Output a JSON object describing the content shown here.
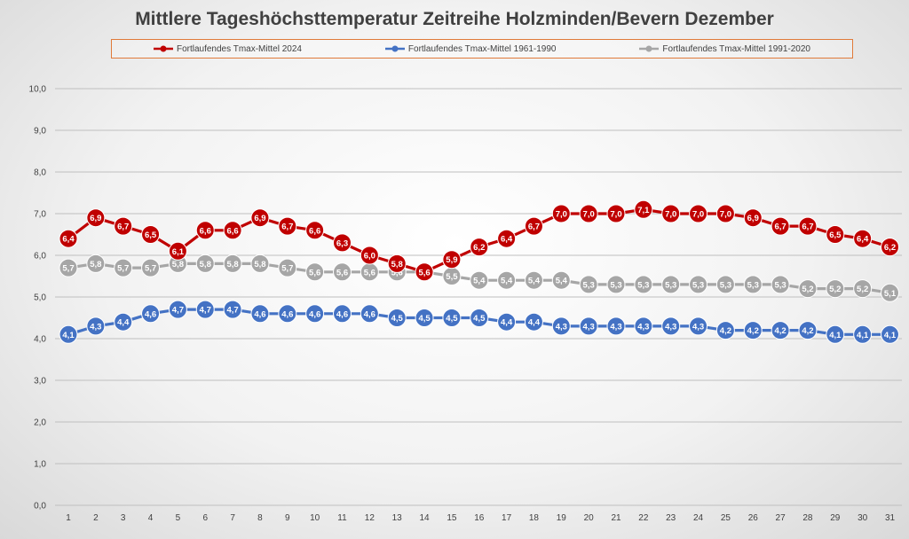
{
  "chart_data": {
    "type": "line",
    "title": "Mittlere Tageshöchsttemperatur Zeitreihe Holzminden/Bevern Dezember",
    "xlabel": "",
    "ylabel": "",
    "x": [
      1,
      2,
      3,
      4,
      5,
      6,
      7,
      8,
      9,
      10,
      11,
      12,
      13,
      14,
      15,
      16,
      17,
      18,
      19,
      20,
      21,
      22,
      23,
      24,
      25,
      26,
      27,
      28,
      29,
      30,
      31
    ],
    "ylim": [
      0,
      10
    ],
    "yticks": [
      "0,0",
      "1,0",
      "2,0",
      "3,0",
      "4,0",
      "5,0",
      "6,0",
      "7,0",
      "8,0",
      "9,0",
      "10,0"
    ],
    "grid": true,
    "legend_position": "top",
    "series": [
      {
        "name": "Fortlaufendes Tmax-Mittel 1991-2020",
        "color": "#a6a6a6",
        "values": [
          5.7,
          5.8,
          5.7,
          5.7,
          5.8,
          5.8,
          5.8,
          5.8,
          5.7,
          5.6,
          5.6,
          5.6,
          5.6,
          5.6,
          5.5,
          5.4,
          5.4,
          5.4,
          5.4,
          5.3,
          5.3,
          5.3,
          5.3,
          5.3,
          5.3,
          5.3,
          5.3,
          5.2,
          5.2,
          5.2,
          5.1
        ]
      },
      {
        "name": "Fortlaufendes Tmax-Mittel 1961-1990",
        "color": "#4472c4",
        "values": [
          4.1,
          4.3,
          4.4,
          4.6,
          4.7,
          4.7,
          4.7,
          4.6,
          4.6,
          4.6,
          4.6,
          4.6,
          4.5,
          4.5,
          4.5,
          4.5,
          4.4,
          4.4,
          4.3,
          4.3,
          4.3,
          4.3,
          4.3,
          4.3,
          4.2,
          4.2,
          4.2,
          4.2,
          4.1,
          4.1,
          4.1
        ]
      },
      {
        "name": "Fortlaufendes Tmax-Mittel 2024",
        "color": "#c00000",
        "values": [
          6.4,
          6.9,
          6.7,
          6.5,
          6.1,
          6.6,
          6.6,
          6.9,
          6.7,
          6.6,
          6.3,
          6.0,
          5.8,
          5.6,
          5.9,
          6.2,
          6.4,
          6.7,
          7.0,
          7.0,
          7.0,
          7.1,
          7.0,
          7.0,
          7.0,
          6.9,
          6.7,
          6.7,
          6.5,
          6.4,
          6.2
        ]
      }
    ],
    "legend_order": [
      2,
      1,
      0
    ]
  }
}
